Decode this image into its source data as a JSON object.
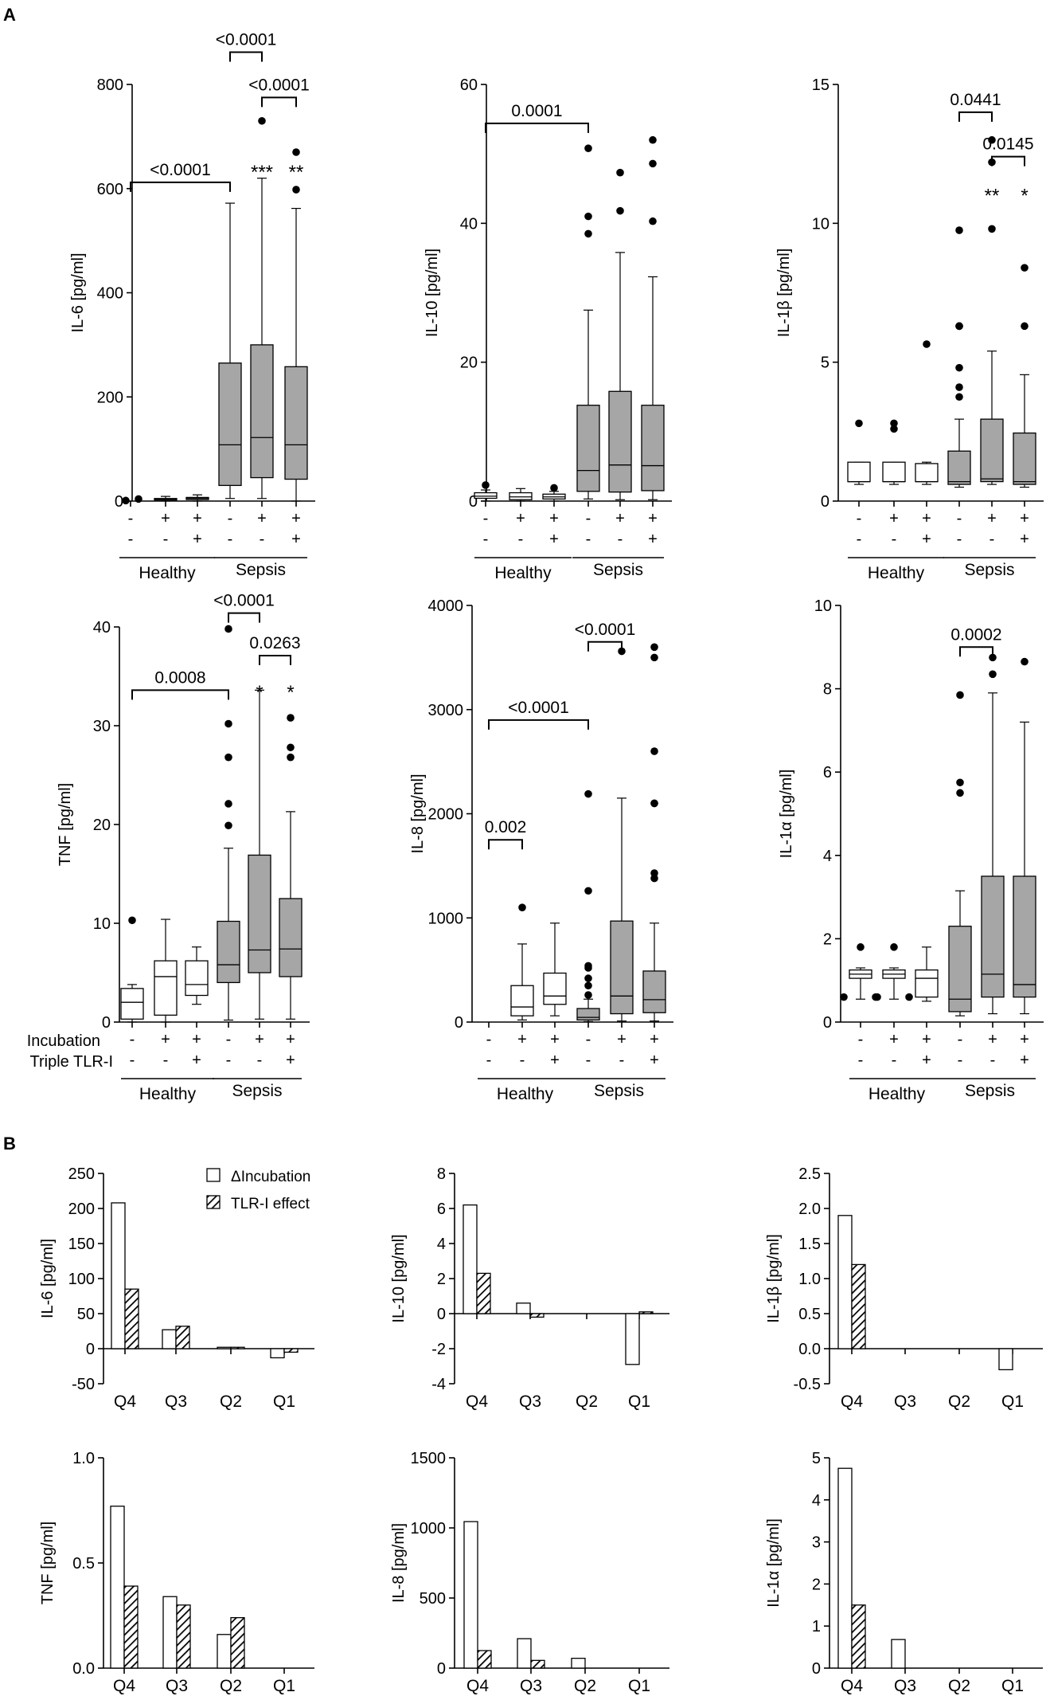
{
  "chart_data": {
    "panel_labels": {
      "a": "A",
      "b": "B"
    },
    "groups": {
      "healthy": "Healthy",
      "sepsis": "Sepsis"
    },
    "row_labels": {
      "incubation": "Incubation",
      "triple": "Triple TLR-I"
    },
    "treatment_signs": {
      "incubation": [
        "-",
        "+",
        "+",
        "-",
        "+",
        "+"
      ],
      "triple": [
        "-",
        "-",
        "+",
        "-",
        "-",
        "+"
      ]
    },
    "legend": {
      "delta": "ΔIncubation",
      "tlr": "TLR-I effect"
    },
    "quartiles": [
      "Q4",
      "Q3",
      "Q2",
      "Q1"
    ],
    "boxplots": [
      {
        "type": "box",
        "ylabel": "IL-6 [pg/ml]",
        "ylim": [
          0,
          800
        ],
        "ticks": [
          "0",
          "200",
          "400",
          "600",
          "800"
        ],
        "boxes": [
          {
            "q1": 0,
            "med": 0,
            "q3": 0,
            "lo": 0,
            "hi": 2,
            "out": [
              1,
              4
            ],
            "fill": "white",
            "hid": true
          },
          {
            "q1": 2,
            "med": 3,
            "q3": 5,
            "lo": 0,
            "hi": 9,
            "out": [],
            "fill": "white"
          },
          {
            "q1": 3,
            "med": 5,
            "q3": 7,
            "lo": 0,
            "hi": 12,
            "out": [],
            "fill": "white"
          },
          {
            "q1": 30,
            "med": 108,
            "q3": 265,
            "lo": 5,
            "hi": 572,
            "out": [],
            "fill": "gray"
          },
          {
            "q1": 45,
            "med": 122,
            "q3": 300,
            "lo": 5,
            "hi": 620,
            "out": [
              730
            ],
            "fill": "gray"
          },
          {
            "q1": 42,
            "med": 108,
            "q3": 258,
            "lo": 0,
            "hi": 562,
            "out": [
              598,
              670
            ],
            "fill": "gray"
          }
        ],
        "brackets": [
          {
            "a": 0,
            "b": 3,
            "y": 612,
            "label": "<0.0001"
          },
          {
            "a": 3,
            "b": 4,
            "y": 862,
            "label": "<0.0001"
          },
          {
            "a": 4,
            "b": 5,
            "y": 775,
            "label": "<0.0001"
          }
        ],
        "stars": [
          {
            "i": 4,
            "y": 632,
            "label": "***"
          },
          {
            "i": 5,
            "y": 632,
            "label": "**"
          }
        ]
      },
      {
        "type": "box",
        "ylabel": "IL-10 [pg/ml]",
        "ylim": [
          0,
          60
        ],
        "ticks": [
          "0",
          "20",
          "40",
          "60"
        ],
        "boxes": [
          {
            "q1": 0.4,
            "med": 0.7,
            "q3": 1.2,
            "lo": 0,
            "hi": 1.6,
            "out": [
              2.3
            ],
            "fill": "white"
          },
          {
            "q1": 0.2,
            "med": 0.6,
            "q3": 1.2,
            "lo": 0,
            "hi": 1.8,
            "out": [],
            "fill": "white"
          },
          {
            "q1": 0.3,
            "med": 0.6,
            "q3": 1.0,
            "lo": 0,
            "hi": 1.4,
            "out": [
              1.9
            ],
            "fill": "white"
          },
          {
            "q1": 1.4,
            "med": 4.4,
            "q3": 13.8,
            "lo": 0.3,
            "hi": 27.5,
            "out": [
              38.5,
              41,
              50.8
            ],
            "fill": "gray"
          },
          {
            "q1": 1.3,
            "med": 5.2,
            "q3": 15.8,
            "lo": 0.2,
            "hi": 35.8,
            "out": [
              41.8,
              47.3
            ],
            "fill": "gray"
          },
          {
            "q1": 1.5,
            "med": 5.1,
            "q3": 13.8,
            "lo": 0.2,
            "hi": 32.3,
            "out": [
              40.3,
              48.6,
              52
            ],
            "fill": "gray"
          }
        ],
        "brackets": [
          {
            "a": 0,
            "b": 3,
            "y": 54.4,
            "label": "0.0001"
          }
        ],
        "stars": []
      },
      {
        "type": "box",
        "ylabel": "IL-1β [pg/ml]",
        "ylim": [
          0,
          15
        ],
        "ticks": [
          "0",
          "5",
          "10",
          "15"
        ],
        "boxes": [
          {
            "q1": 0.7,
            "med": 0.7,
            "q3": 1.4,
            "lo": 0.6,
            "hi": 1.4,
            "out": [
              2.8
            ],
            "fill": "white"
          },
          {
            "q1": 0.7,
            "med": 0.7,
            "q3": 1.4,
            "lo": 0.6,
            "hi": 1.4,
            "out": [
              2.6,
              2.8
            ],
            "fill": "white"
          },
          {
            "q1": 0.7,
            "med": 0.7,
            "q3": 1.35,
            "lo": 0.6,
            "hi": 1.4,
            "out": [
              5.65
            ],
            "fill": "white"
          },
          {
            "q1": 0.6,
            "med": 0.7,
            "q3": 1.8,
            "lo": 0.5,
            "hi": 2.95,
            "out": [
              3.75,
              4.1,
              4.8,
              6.3,
              6.3,
              9.75,
              6.3
            ],
            "fill": "gray"
          },
          {
            "q1": 0.7,
            "med": 0.8,
            "q3": 2.95,
            "lo": 0.6,
            "hi": 5.4,
            "out": [
              9.8,
              12.2,
              13.0
            ],
            "fill": "gray"
          },
          {
            "q1": 0.6,
            "med": 0.7,
            "q3": 2.45,
            "lo": 0.5,
            "hi": 4.55,
            "out": [
              6.3,
              8.4
            ],
            "fill": "gray"
          }
        ],
        "brackets": [
          {
            "a": 3,
            "b": 4,
            "y": 14.0,
            "label": "0.0441"
          },
          {
            "a": 4,
            "b": 5,
            "y": 12.4,
            "label": "0.0145"
          }
        ],
        "stars": [
          {
            "i": 4,
            "y": 11,
            "label": "**"
          },
          {
            "i": 5,
            "y": 11,
            "label": "*"
          }
        ]
      },
      {
        "type": "box",
        "ylabel": "TNF [pg/ml]",
        "ylim": [
          0,
          40
        ],
        "ticks": [
          "0",
          "10",
          "20",
          "30",
          "40"
        ],
        "boxes": [
          {
            "q1": 0.3,
            "med": 2,
            "q3": 3.4,
            "lo": 0,
            "hi": 3.8,
            "out": [
              10.3
            ],
            "fill": "white"
          },
          {
            "q1": 0.7,
            "med": 4.6,
            "q3": 6.2,
            "lo": 0,
            "hi": 10.4,
            "out": [],
            "fill": "white"
          },
          {
            "q1": 2.7,
            "med": 3.8,
            "q3": 6.2,
            "lo": 1.8,
            "hi": 7.6,
            "out": [],
            "fill": "white"
          },
          {
            "q1": 4,
            "med": 5.8,
            "q3": 10.2,
            "lo": 0.2,
            "hi": 17.6,
            "out": [
              19.9,
              22.1,
              26.8,
              30.2,
              39.8
            ],
            "fill": "gray"
          },
          {
            "q1": 5,
            "med": 7.3,
            "q3": 16.9,
            "lo": 0.3,
            "hi": 33.6,
            "out": [],
            "fill": "gray"
          },
          {
            "q1": 4.6,
            "med": 7.4,
            "q3": 12.5,
            "lo": 0.3,
            "hi": 21.3,
            "out": [
              26.8,
              27.8,
              30.8
            ],
            "fill": "gray"
          }
        ],
        "brackets": [
          {
            "a": 0,
            "b": 3,
            "y": 33.6,
            "label": "0.0008"
          },
          {
            "a": 3,
            "b": 4,
            "y": 41.4,
            "label": "<0.0001"
          },
          {
            "a": 4,
            "b": 5,
            "y": 37.1,
            "label": "0.0263"
          }
        ],
        "stars": [
          {
            "i": 4,
            "y": 33.4,
            "label": "*"
          },
          {
            "i": 5,
            "y": 33.4,
            "label": "*"
          }
        ]
      },
      {
        "type": "box",
        "ylabel": "IL-8 [pg/ml]",
        "ylim": [
          0,
          4000
        ],
        "ticks": [
          "0",
          "1000",
          "2000",
          "3000",
          "4000"
        ],
        "boxes": [
          {
            "q1": 0,
            "med": 0,
            "q3": 0,
            "lo": 0,
            "hi": 5,
            "out": [],
            "fill": "white",
            "hid": true
          },
          {
            "q1": 60,
            "med": 145,
            "q3": 350,
            "lo": 20,
            "hi": 750,
            "out": [
              1100
            ],
            "fill": "white"
          },
          {
            "q1": 170,
            "med": 250,
            "q3": 470,
            "lo": 60,
            "hi": 950,
            "out": [],
            "fill": "white"
          },
          {
            "q1": 20,
            "med": 45,
            "q3": 130,
            "lo": 5,
            "hi": 220,
            "out": [
              260,
              350,
              420,
              520,
              540,
              1260,
              2190
            ],
            "fill": "gray"
          },
          {
            "q1": 80,
            "med": 250,
            "q3": 970,
            "lo": 10,
            "hi": 2150,
            "out": [
              3560
            ],
            "fill": "gray"
          },
          {
            "q1": 90,
            "med": 215,
            "q3": 490,
            "lo": 10,
            "hi": 950,
            "out": [
              1380,
              1430,
              2100,
              2100,
              2600,
              3500,
              3600
            ],
            "fill": "gray"
          }
        ],
        "brackets": [
          {
            "a": 0,
            "b": 1,
            "y": 1750,
            "label": "0.002"
          },
          {
            "a": 0,
            "b": 3,
            "y": 2900,
            "label": "<0.0001"
          },
          {
            "a": 3,
            "b": 4,
            "y": 3650,
            "label": "<0.0001"
          }
        ],
        "stars": []
      },
      {
        "type": "box",
        "ylabel": "IL-1α [pg/ml]",
        "ylim": [
          0,
          10
        ],
        "ticks": [
          "0",
          "2",
          "4",
          "6",
          "8",
          "10"
        ],
        "boxes": [
          {
            "q1": 1.05,
            "med": 1.15,
            "q3": 1.25,
            "lo": 0.55,
            "hi": 1.3,
            "out": [
              0.6,
              0.6,
              1.8
            ],
            "fill": "white",
            "inlier": true
          },
          {
            "q1": 1.05,
            "med": 1.15,
            "q3": 1.25,
            "lo": 0.55,
            "hi": 1.3,
            "out": [
              0.6,
              0.6,
              1.8
            ],
            "fill": "white",
            "inlier": true
          },
          {
            "q1": 0.6,
            "med": 1.05,
            "q3": 1.25,
            "lo": 0.5,
            "hi": 1.8,
            "out": [],
            "fill": "white"
          },
          {
            "q1": 0.25,
            "med": 0.55,
            "q3": 2.3,
            "lo": 0.15,
            "hi": 3.15,
            "out": [
              5.5,
              5.75,
              7.85
            ],
            "fill": "gray"
          },
          {
            "q1": 0.6,
            "med": 1.15,
            "q3": 3.5,
            "lo": 0.2,
            "hi": 7.9,
            "out": [
              8.35,
              8.75
            ],
            "fill": "gray"
          },
          {
            "q1": 0.6,
            "med": 0.9,
            "q3": 3.5,
            "lo": 0.2,
            "hi": 7.2,
            "out": [
              8.65
            ],
            "fill": "gray"
          }
        ],
        "brackets": [
          {
            "a": 3,
            "b": 4,
            "y": 9.0,
            "label": "0.0002"
          }
        ],
        "stars": []
      }
    ],
    "barcharts": [
      {
        "type": "bar",
        "ylabel": "IL-6 [pg/ml]",
        "ylim": [
          -50,
          250
        ],
        "ticks": [
          "-50",
          "0",
          "50",
          "100",
          "150",
          "200",
          "250"
        ],
        "series": [
          {
            "name": "ΔIncubation",
            "values": [
              208,
              27,
              2,
              -13
            ]
          },
          {
            "name": "TLR-I effect",
            "values": [
              85,
              32,
              2,
              -5
            ]
          }
        ]
      },
      {
        "type": "bar",
        "ylabel": "IL-10 [pg/ml]",
        "ylim": [
          -4,
          8
        ],
        "ticks": [
          "-4",
          "-2",
          "0",
          "2",
          "4",
          "6",
          "8"
        ],
        "series": [
          {
            "name": "ΔIncubation",
            "values": [
              6.2,
              0.6,
              0,
              -2.9
            ]
          },
          {
            "name": "TLR-I effect",
            "values": [
              2.3,
              -0.2,
              0,
              0.1
            ]
          }
        ]
      },
      {
        "type": "bar",
        "ylabel": "IL-1β [pg/ml]",
        "ylim": [
          -0.5,
          2.5
        ],
        "ticks": [
          "-0.5",
          "0.0",
          "0.5",
          "1.0",
          "1.5",
          "2.0",
          "2.5"
        ],
        "series": [
          {
            "name": "ΔIncubation",
            "values": [
              1.9,
              0,
              0,
              -0.3
            ]
          },
          {
            "name": "TLR-I effect",
            "values": [
              1.2,
              0,
              0,
              0
            ]
          }
        ]
      },
      {
        "type": "bar",
        "ylabel": "TNF [pg/ml]",
        "ylim": [
          0,
          1.0
        ],
        "ticks": [
          "0.0",
          "0.5",
          "1.0"
        ],
        "series": [
          {
            "name": "ΔIncubation",
            "values": [
              0.77,
              0.34,
              0.16,
              0
            ]
          },
          {
            "name": "TLR-I effect",
            "values": [
              0.39,
              0.3,
              0.24,
              0
            ]
          }
        ]
      },
      {
        "type": "bar",
        "ylabel": "IL-8 [pg/ml]",
        "ylim": [
          0,
          1500
        ],
        "ticks": [
          "0",
          "500",
          "1000",
          "1500"
        ],
        "series": [
          {
            "name": "ΔIncubation",
            "values": [
              1045,
              210,
              70,
              0
            ]
          },
          {
            "name": "TLR-I effect",
            "values": [
              125,
              55,
              0,
              0
            ]
          }
        ]
      },
      {
        "type": "bar",
        "ylabel": "IL-1α [pg/ml]",
        "ylim": [
          0,
          5
        ],
        "ticks": [
          "0",
          "1",
          "2",
          "3",
          "4",
          "5"
        ],
        "series": [
          {
            "name": "ΔIncubation",
            "values": [
              4.75,
              0.68,
              0,
              0
            ]
          },
          {
            "name": "TLR-I effect",
            "values": [
              1.5,
              0,
              0,
              0
            ]
          }
        ]
      }
    ]
  }
}
